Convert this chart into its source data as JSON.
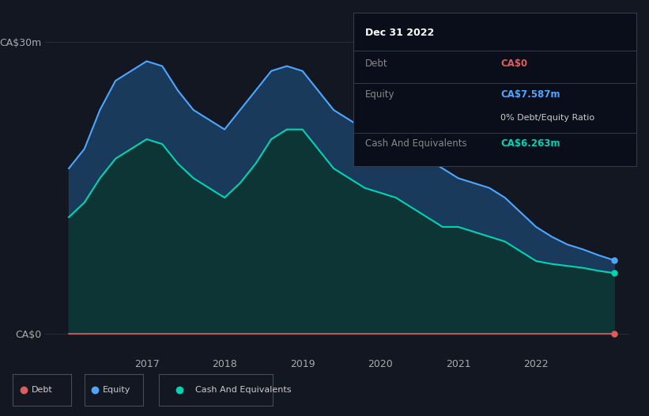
{
  "bg_color": "#131722",
  "plot_bg_color": "#131722",
  "grid_color": "#252d3d",
  "ylabel_top": "CA$30m",
  "ylabel_bottom": "CA$0",
  "debt_color": "#e05c5c",
  "equity_color": "#4da6ff",
  "cash_color": "#00d4b4",
  "equity_fill_color": "#1a3a5c",
  "cash_fill_color": "#0e3535",
  "x_ticks": [
    2017,
    2018,
    2019,
    2020,
    2021,
    2022
  ],
  "tooltip_title": "Dec 31 2022",
  "tooltip_debt_label": "Debt",
  "tooltip_debt_value": "CA$0",
  "tooltip_equity_label": "Equity",
  "tooltip_equity_value": "CA$7.587m",
  "tooltip_ratio": "0% Debt/Equity Ratio",
  "tooltip_cash_label": "Cash And Equivalents",
  "tooltip_cash_value": "CA$6.263m",
  "time_points": [
    2016.0,
    2016.2,
    2016.4,
    2016.6,
    2016.8,
    2017.0,
    2017.2,
    2017.4,
    2017.6,
    2017.8,
    2018.0,
    2018.2,
    2018.4,
    2018.6,
    2018.8,
    2019.0,
    2019.2,
    2019.4,
    2019.6,
    2019.8,
    2020.0,
    2020.2,
    2020.4,
    2020.6,
    2020.8,
    2021.0,
    2021.2,
    2021.4,
    2021.6,
    2021.8,
    2022.0,
    2022.2,
    2022.4,
    2022.6,
    2022.8,
    2023.0
  ],
  "debt_values": [
    0,
    0,
    0,
    0,
    0,
    0,
    0,
    0,
    0,
    0,
    0,
    0,
    0,
    0,
    0,
    0,
    0,
    0,
    0,
    0,
    0,
    0,
    0,
    0,
    0,
    0,
    0,
    0,
    0,
    0,
    0,
    0,
    0,
    0,
    0,
    0
  ],
  "equity_values": [
    17,
    19,
    23,
    26,
    27,
    28,
    27.5,
    25,
    23,
    22,
    21,
    23,
    25,
    27,
    27.5,
    27,
    25,
    23,
    22,
    21,
    20.5,
    20,
    19,
    18,
    17,
    16,
    15.5,
    15,
    14,
    12.5,
    11,
    10,
    9.2,
    8.7,
    8.1,
    7.587
  ],
  "cash_values": [
    12,
    13.5,
    16,
    18,
    19,
    20,
    19.5,
    17.5,
    16,
    15,
    14,
    15.5,
    17.5,
    20,
    21,
    21,
    19,
    17,
    16,
    15,
    14.5,
    14,
    13,
    12,
    11,
    11,
    10.5,
    10,
    9.5,
    8.5,
    7.5,
    7.2,
    7.0,
    6.8,
    6.5,
    6.263
  ]
}
